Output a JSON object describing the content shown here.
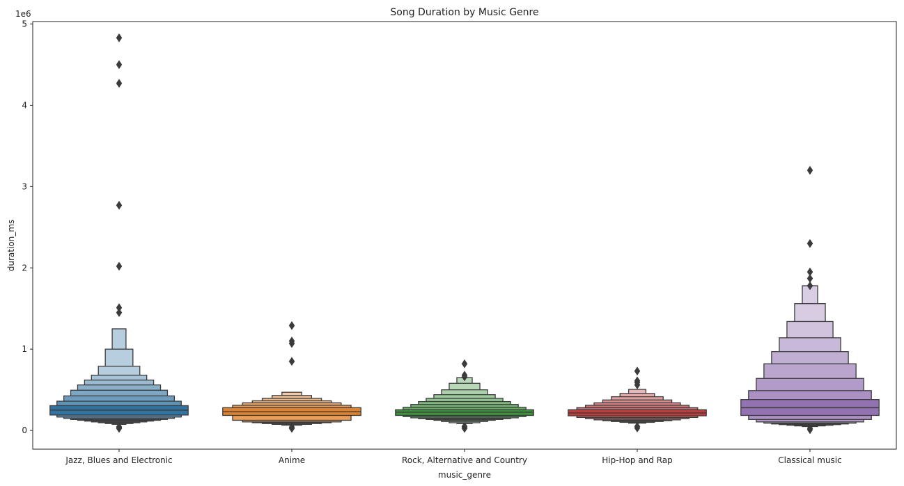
{
  "chart_data": {
    "type": "boxen",
    "title": "Song Duration by Music Genre",
    "xlabel": "music_genre",
    "ylabel": "duration_ms",
    "y_offset_label": "1e6",
    "y_scale": 1000000,
    "ylim": [
      -230000,
      5030000
    ],
    "yticks": [
      0,
      1000000,
      2000000,
      3000000,
      4000000,
      5000000
    ],
    "ytick_labels": [
      "0",
      "1",
      "2",
      "3",
      "4",
      "5"
    ],
    "grid": false,
    "categories": [
      "Jazz, Blues and Electronic",
      "Anime",
      "Rock, Alternative and Country",
      "Hip-Hop and Rap",
      "Classical music"
    ],
    "series": [
      {
        "color": "#3274a1",
        "median": 250000,
        "levels": [
          [
            190000,
            305000
          ],
          [
            165000,
            360000
          ],
          [
            148000,
            425000
          ],
          [
            135000,
            495000
          ],
          [
            125000,
            560000
          ],
          [
            115000,
            620000
          ],
          [
            105000,
            680000
          ],
          [
            95000,
            790000
          ],
          [
            85000,
            1000000
          ],
          [
            75000,
            1250000
          ]
        ],
        "outliers": [
          4830000,
          4500000,
          4270000,
          2770000,
          2020000,
          1510000,
          1450000,
          25000,
          35000,
          45000
        ]
      },
      {
        "color": "#e1812c",
        "median": 230000,
        "levels": [
          [
            185000,
            280000
          ],
          [
            125000,
            310000
          ],
          [
            105000,
            340000
          ],
          [
            95000,
            365000
          ],
          [
            85000,
            395000
          ],
          [
            75000,
            430000
          ],
          [
            65000,
            470000
          ]
        ],
        "outliers": [
          1290000,
          1100000,
          1070000,
          850000,
          25000,
          40000
        ]
      },
      {
        "color": "#3a923a",
        "median": 225000,
        "levels": [
          [
            185000,
            255000
          ],
          [
            170000,
            285000
          ],
          [
            155000,
            320000
          ],
          [
            145000,
            355000
          ],
          [
            135000,
            395000
          ],
          [
            125000,
            440000
          ],
          [
            110000,
            500000
          ],
          [
            95000,
            580000
          ],
          [
            85000,
            650000
          ]
        ],
        "outliers": [
          820000,
          680000,
          660000,
          25000,
          40000,
          50000
        ]
      },
      {
        "color": "#c03d3e",
        "median": 215000,
        "levels": [
          [
            180000,
            255000
          ],
          [
            160000,
            280000
          ],
          [
            145000,
            310000
          ],
          [
            130000,
            340000
          ],
          [
            120000,
            375000
          ],
          [
            110000,
            415000
          ],
          [
            100000,
            455000
          ],
          [
            90000,
            505000
          ]
        ],
        "outliers": [
          730000,
          610000,
          590000,
          560000,
          30000,
          50000
        ]
      },
      {
        "color": "#9372b2",
        "median": 280000,
        "levels": [
          [
            185000,
            380000
          ],
          [
            135000,
            490000
          ],
          [
            105000,
            640000
          ],
          [
            90000,
            820000
          ],
          [
            80000,
            970000
          ],
          [
            72000,
            1140000
          ],
          [
            64000,
            1340000
          ],
          [
            56000,
            1560000
          ],
          [
            48000,
            1780000
          ]
        ],
        "outliers": [
          3200000,
          2300000,
          1950000,
          1870000,
          1780000,
          10000,
          25000
        ]
      }
    ]
  }
}
